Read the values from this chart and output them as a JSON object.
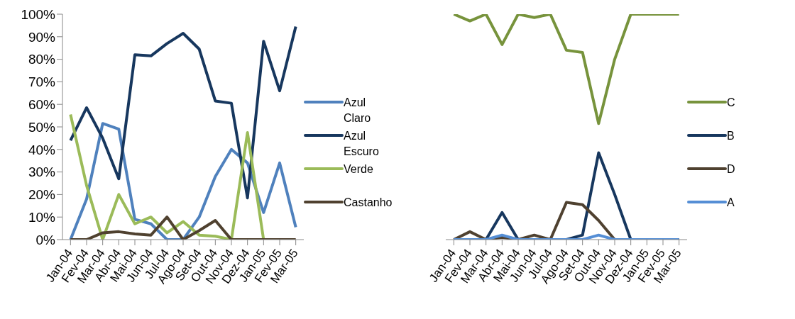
{
  "chart_data": [
    {
      "type": "line",
      "categories": [
        "Jan-04",
        "Fev-04",
        "Mar-04",
        "Abr-04",
        "Mai-04",
        "Jun-04",
        "Jul-04",
        "Ago-04",
        "Set-04",
        "Out-04",
        "Nov-04",
        "Dez-04",
        "Jan-05",
        "Fev-05",
        "Mar-05"
      ],
      "ylim": [
        0,
        1
      ],
      "yticks": [
        {
          "value": 0,
          "label": "0%"
        },
        {
          "value": 0.1,
          "label": "10%"
        },
        {
          "value": 0.2,
          "label": "20%"
        },
        {
          "value": 0.3,
          "label": "30%"
        },
        {
          "value": 0.4,
          "label": "40%"
        },
        {
          "value": 0.5,
          "label": "50%"
        },
        {
          "value": 0.6,
          "label": "60%"
        },
        {
          "value": 0.7,
          "label": "70%"
        },
        {
          "value": 0.8,
          "label": "80%"
        },
        {
          "value": 0.9,
          "label": "90%"
        },
        {
          "value": 1,
          "label": "100%"
        }
      ],
      "grid": false,
      "legend": "right",
      "marker": "none",
      "line_style": "solid",
      "series": [
        {
          "name": "Azul Claro",
          "color": "#4f81bd",
          "values": [
            0,
            0.18,
            0.515,
            0.49,
            0.09,
            0.07,
            0,
            0,
            0.1,
            0.28,
            0.4,
            0.34,
            0.12,
            0.34,
            0.055
          ]
        },
        {
          "name": "Azul Escuro",
          "color": "#17375e",
          "values": [
            0.44,
            0.585,
            0.45,
            0.27,
            0.82,
            0.815,
            0.87,
            0.915,
            0.845,
            0.615,
            0.605,
            0.185,
            0.88,
            0.66,
            0.945
          ]
        },
        {
          "name": "Verde",
          "color": "#9bbb59",
          "values": [
            0.555,
            0.24,
            0,
            0.2,
            0.07,
            0.1,
            0.03,
            0.08,
            0.02,
            0.015,
            0,
            0.475,
            0,
            null,
            null
          ]
        },
        {
          "name": "Castanho",
          "color": "#4f412f",
          "values": [
            0,
            0,
            0.03,
            0.035,
            0.025,
            0.02,
            0.1,
            0,
            0.04,
            0.085,
            0,
            0,
            0,
            0,
            0
          ]
        }
      ]
    },
    {
      "type": "line",
      "categories": [
        "Jan-04",
        "Fev-04",
        "Mar-04",
        "Abr-04",
        "Mai-04",
        "Jun-04",
        "Jul-04",
        "Ago-04",
        "Set-04",
        "Out-04",
        "Nov-04",
        "Dez-04",
        "Jan-05",
        "Fev-05",
        "Mar-05"
      ],
      "ylim": [
        0,
        1
      ],
      "tick_labels": "x",
      "grid": false,
      "legend": "right",
      "marker": "none",
      "line_style": "solid",
      "series": [
        {
          "name": "C",
          "color": "#77933c",
          "values": [
            1,
            0.97,
            1,
            0.865,
            1,
            0.985,
            1,
            0.84,
            0.83,
            0.515,
            0.8,
            1,
            1,
            1,
            1
          ]
        },
        {
          "name": "B",
          "color": "#17375e",
          "values": [
            0,
            0,
            0,
            0.12,
            0,
            0,
            0,
            0,
            0.02,
            0.385,
            0.2,
            0,
            0,
            0,
            0
          ]
        },
        {
          "name": "D",
          "color": "#4f4130",
          "values": [
            0,
            0.035,
            0,
            0.01,
            0,
            0.02,
            0,
            0.165,
            0.155,
            0.085,
            0,
            0,
            0,
            0,
            0
          ]
        },
        {
          "name": "A",
          "color": "#558ed5",
          "values": [
            0,
            0,
            0,
            0.02,
            0,
            0,
            0,
            0,
            0,
            0.02,
            0,
            0,
            0,
            0,
            0
          ]
        }
      ]
    }
  ]
}
